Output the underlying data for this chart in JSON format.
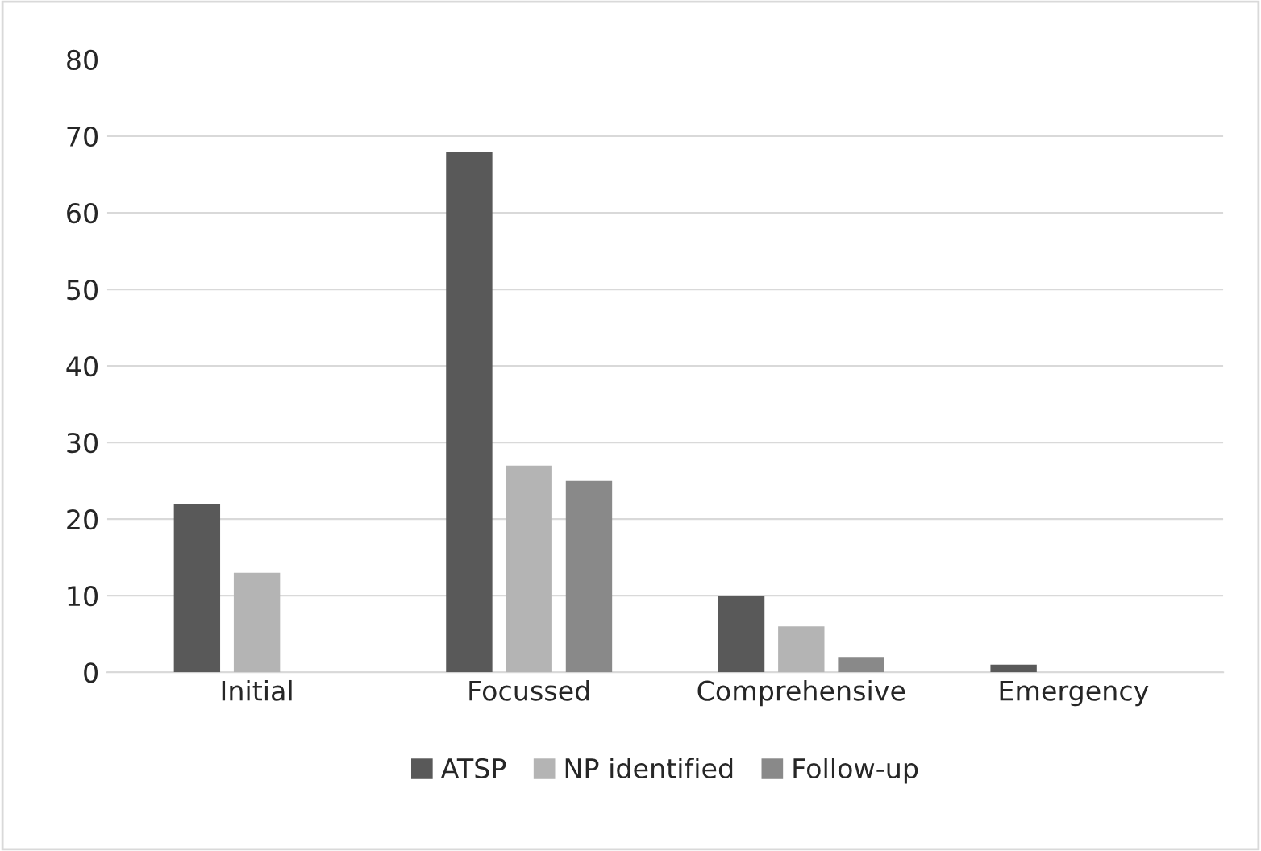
{
  "chart_data": {
    "type": "bar",
    "categories": [
      "Initial",
      "Focussed",
      "Comprehensive",
      "Emergency"
    ],
    "series": [
      {
        "name": "ATSP",
        "color": "#595959",
        "values": [
          22,
          68,
          10,
          1
        ]
      },
      {
        "name": "NP identified",
        "color": "#b4b4b4",
        "values": [
          13,
          27,
          6,
          null
        ]
      },
      {
        "name": "Follow-up",
        "color": "#898989",
        "values": [
          null,
          25,
          2,
          null
        ]
      }
    ],
    "ylim": [
      0,
      80
    ],
    "yticks": [
      0,
      10,
      20,
      30,
      40,
      50,
      60,
      70,
      80
    ],
    "grid": "y",
    "legend": "bottom"
  }
}
